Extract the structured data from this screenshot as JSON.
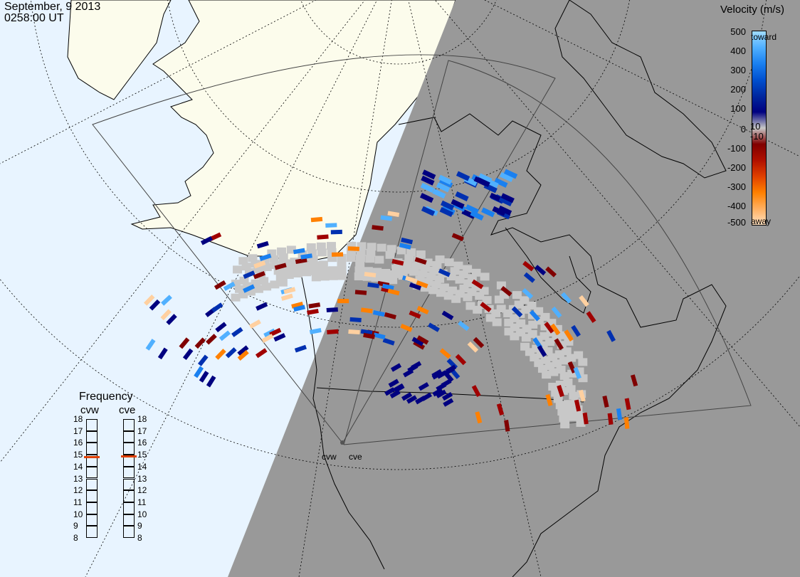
{
  "header": {
    "date": "September, 9 2013",
    "time": "0258:00 UT"
  },
  "colorbar": {
    "title": "Velocity (m/s)",
    "ticks": [
      "500",
      "400",
      "300",
      "200",
      "100",
      "10",
      "0",
      "-10",
      "-100",
      "-200",
      "-300",
      "-400",
      "-500"
    ],
    "toward_label": "toward",
    "away_label": "away",
    "colors": [
      "#ffe0c0",
      "#ffb060",
      "#ff8000",
      "#e04000",
      "#b01000",
      "#800000",
      "#c8c8c8",
      "#000080",
      "#0028a0",
      "#0050d0",
      "#1a80f0",
      "#50b0ff",
      "#a0dcff"
    ]
  },
  "frequency_panel": {
    "title": "Frequency",
    "radars": [
      {
        "name": "cvw",
        "freq_mhz": 14.8
      },
      {
        "name": "cve",
        "freq_mhz": 14.9
      }
    ],
    "scale": [
      "18",
      "17",
      "16",
      "15",
      "14",
      "13",
      "12",
      "11",
      "10",
      "9",
      "8"
    ],
    "marker_color": "#e04000"
  },
  "sites": [
    {
      "code": "cvw"
    },
    {
      "code": "cve"
    }
  ],
  "map_colors": {
    "ocean": "#e8f4ff",
    "land": "#fcfcec",
    "night": "#999999",
    "empty_scatter": "#c8c8c8"
  }
}
